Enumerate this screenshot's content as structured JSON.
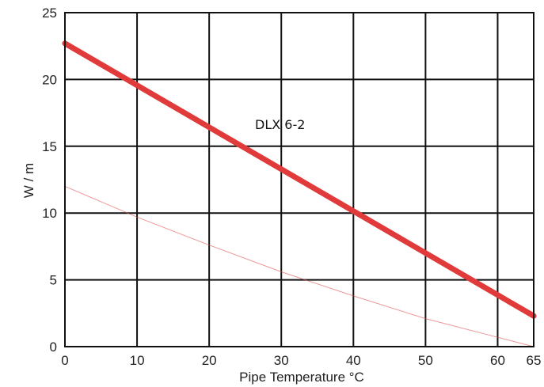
{
  "chart_data": {
    "type": "line",
    "title": "",
    "xlabel": "Pipe Temperature °C",
    "ylabel": "W / m",
    "xlim": [
      0,
      65
    ],
    "ylim": [
      0,
      25
    ],
    "xticks": [
      0,
      10,
      20,
      30,
      40,
      50,
      60,
      65
    ],
    "yticks": [
      0,
      5,
      10,
      15,
      20,
      25
    ],
    "grid": true,
    "series": [
      {
        "name": "DLX 6-2",
        "color": "#e03a3a",
        "x": [
          0,
          65
        ],
        "y": [
          22.7,
          2.3
        ]
      },
      {
        "color": "#e05050",
        "x": [
          0,
          10,
          20,
          30,
          40,
          50,
          60,
          65
        ],
        "y": [
          12.0,
          9.7,
          7.6,
          5.6,
          3.8,
          2.1,
          0.7,
          0.0
        ]
      }
    ]
  }
}
